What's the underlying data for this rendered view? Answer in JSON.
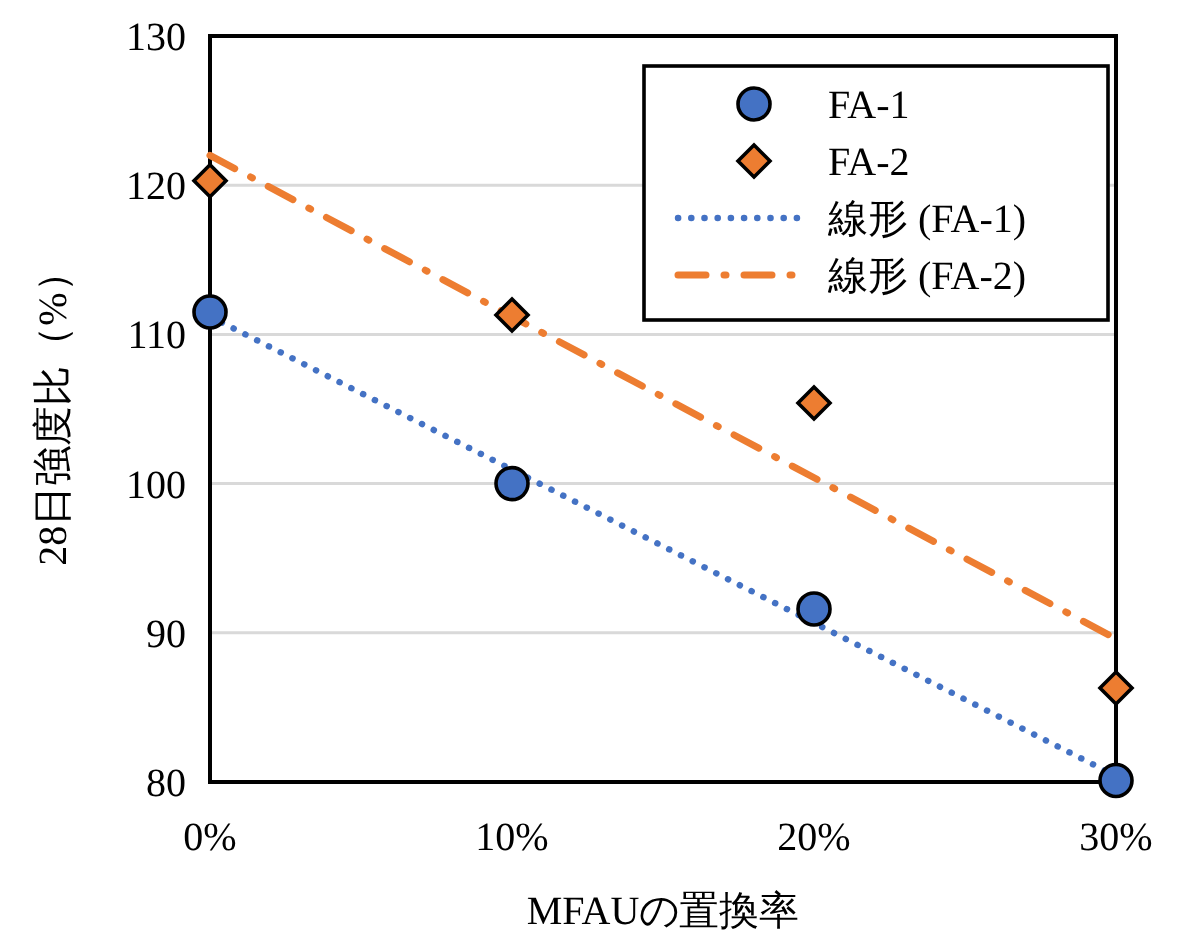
{
  "chart_data": {
    "type": "scatter",
    "xlabel": "MFAUの置換率",
    "ylabel": "28日強度比（%）",
    "xlim": [
      0,
      30
    ],
    "ylim": [
      80,
      130
    ],
    "xticks": [
      {
        "value": 0,
        "label": "0%"
      },
      {
        "value": 10,
        "label": "10%"
      },
      {
        "value": 20,
        "label": "20%"
      },
      {
        "value": 30,
        "label": "30%"
      }
    ],
    "yticks": [
      80,
      90,
      100,
      110,
      120,
      130
    ],
    "grid": "y",
    "legend": "top right",
    "series": [
      {
        "name": "FA-1",
        "marker": "circle",
        "color": "#4472c4",
        "x": [
          0,
          10,
          20,
          30
        ],
        "values": [
          111.5,
          100.0,
          91.6,
          80.1
        ]
      },
      {
        "name": "FA-2",
        "marker": "diamond",
        "color": "#ed7d31",
        "x": [
          0,
          10,
          20,
          30
        ],
        "values": [
          120.3,
          111.3,
          105.4,
          86.3
        ]
      },
      {
        "name": "線形 (FA-1)",
        "type": "line",
        "marker": "none",
        "line_style": "dotted",
        "color": "#4472c4",
        "x": [
          0,
          30
        ],
        "values": [
          111.2,
          80.4
        ]
      },
      {
        "name": "線形 (FA-2)",
        "type": "line",
        "marker": "none",
        "line_style": "dashed",
        "color": "#ed7d31",
        "x": [
          0,
          30
        ],
        "values": [
          122.0,
          89.6
        ]
      }
    ]
  }
}
